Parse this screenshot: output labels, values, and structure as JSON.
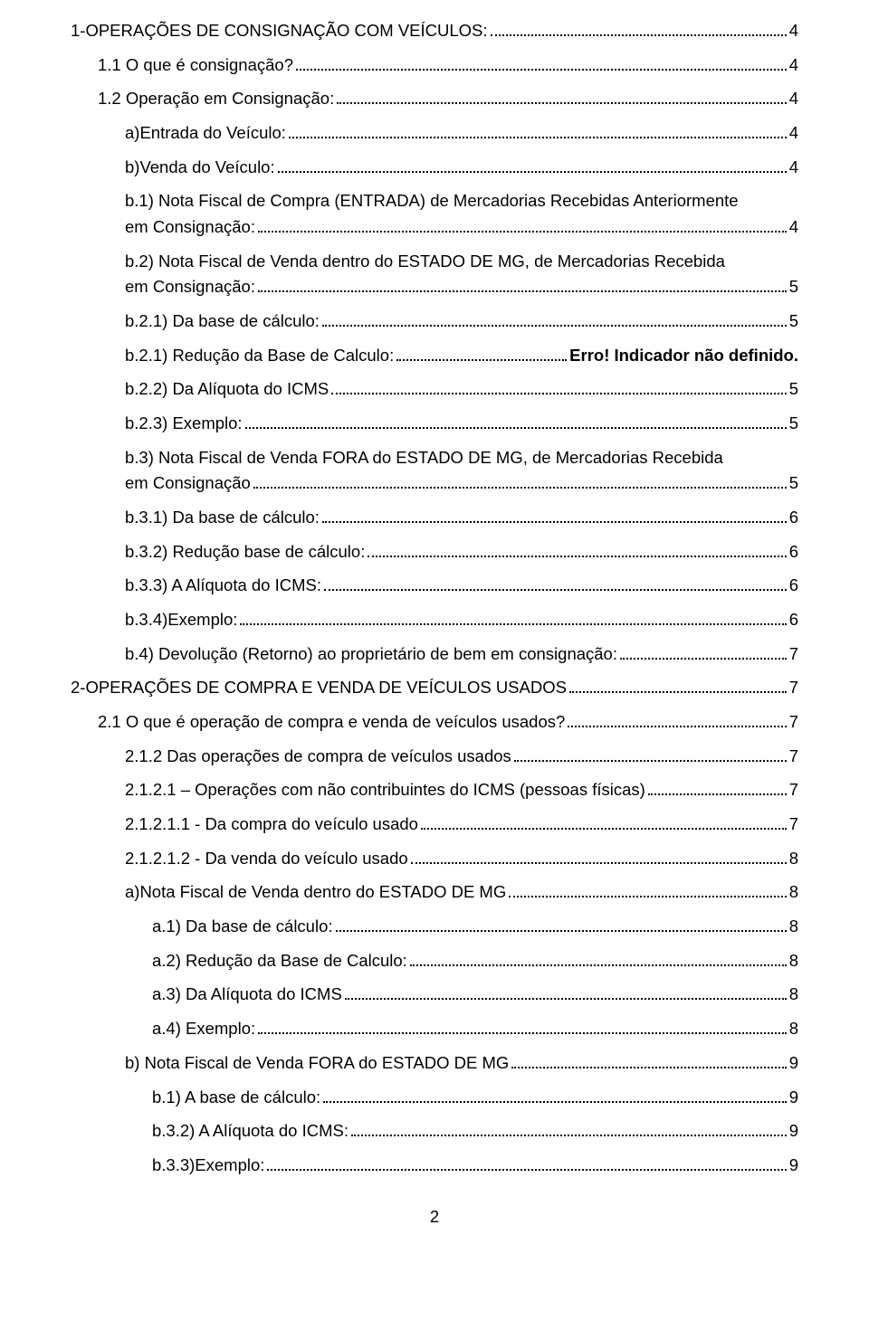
{
  "toc": [
    {
      "title": "1-OPERAÇÕES DE CONSIGNAÇÃO COM VEÍCULOS:",
      "page": "4",
      "level": 0,
      "bold": false
    },
    {
      "title": "1.1   O que é consignação?",
      "page": "4",
      "level": 1,
      "bold": false
    },
    {
      "title": "1.2   Operação em Consignação:",
      "page": "4",
      "level": 1,
      "bold": false
    },
    {
      "title": "a)Entrada do Veículo:",
      "page": "4",
      "level": 2,
      "bold": false
    },
    {
      "title": "b)Venda do Veículo:",
      "page": "4",
      "level": 2,
      "bold": false
    },
    {
      "title": "b.1) Nota Fiscal de Compra (ENTRADA) de Mercadorias Recebidas Anteriormente em Consignação:",
      "page": "4",
      "level": 2,
      "bold": false,
      "multiline": true
    },
    {
      "title": "b.2) Nota Fiscal de Venda dentro do ESTADO DE MG, de Mercadorias Recebida em Consignação:",
      "page": "5",
      "level": 2,
      "bold": false,
      "multiline": true
    },
    {
      "title": "b.2.1) Da base de cálculo:",
      "page": "5",
      "level": 2,
      "bold": false
    },
    {
      "title": "b.2.1) Redução da Base de Calculo:",
      "page": "Erro! Indicador não definido.",
      "level": 2,
      "bold": true,
      "boldPage": true
    },
    {
      "title": "b.2.2) Da Alíquota do ICMS",
      "page": "5",
      "level": 2,
      "bold": false
    },
    {
      "title": "b.2.3) Exemplo:",
      "page": "5",
      "level": 2,
      "bold": false
    },
    {
      "title": "b.3) Nota Fiscal de Venda FORA do ESTADO DE MG, de Mercadorias Recebida em Consignação",
      "page": "5",
      "level": 2,
      "bold": false,
      "multiline": true
    },
    {
      "title": "b.3.1) Da base de cálculo:",
      "page": "6",
      "level": 2,
      "bold": false
    },
    {
      "title": "b.3.2) Redução  base de cálculo:",
      "page": "6",
      "level": 2,
      "bold": false
    },
    {
      "title": "b.3.3) A Alíquota do ICMS:",
      "page": "6",
      "level": 2,
      "bold": false
    },
    {
      "title": "b.3.4)Exemplo:",
      "page": "6",
      "level": 2,
      "bold": false
    },
    {
      "title": "b.4) Devolução (Retorno) ao proprietário de bem em consignação:",
      "page": "7",
      "level": 2,
      "bold": false
    },
    {
      "title": "2-OPERAÇÕES DE COMPRA E VENDA DE VEÍCULOS USADOS",
      "page": "7",
      "level": 0,
      "bold": false
    },
    {
      "title": "2.1 O que é operação de compra e venda de veículos usados?",
      "page": "7",
      "level": 1,
      "bold": false
    },
    {
      "title": "2.1.2 Das operações de compra de veículos usados",
      "page": "7",
      "level": 2,
      "bold": false
    },
    {
      "title": "2.1.2.1 – Operações com não contribuintes do ICMS (pessoas físicas)",
      "page": "7",
      "level": 2,
      "bold": false
    },
    {
      "title": "2.1.2.1.1 - Da compra do veículo usado",
      "page": "7",
      "level": 2,
      "bold": false
    },
    {
      "title": "2.1.2.1.2 - Da venda do veículo usado",
      "page": "8",
      "level": 2,
      "bold": false
    },
    {
      "title": "a)Nota Fiscal de Venda dentro do ESTADO DE MG",
      "page": "8",
      "level": 2,
      "bold": false
    },
    {
      "title": "a.1) Da base de cálculo:",
      "page": "8",
      "level": 3,
      "bold": false
    },
    {
      "title": "a.2) Redução da Base de Calculo:",
      "page": "8",
      "level": 3,
      "bold": false
    },
    {
      "title": "a.3) Da Alíquota do ICMS",
      "page": "8",
      "level": 3,
      "bold": false
    },
    {
      "title": "a.4) Exemplo:",
      "page": "8",
      "level": 3,
      "bold": false
    },
    {
      "title": "b) Nota Fiscal de Venda FORA do ESTADO DE MG",
      "page": "9",
      "level": 2,
      "bold": false
    },
    {
      "title": "b.1) A base de cálculo:",
      "page": "9",
      "level": 3,
      "bold": false
    },
    {
      "title": "b.3.2) A Alíquota do ICMS:",
      "page": "9",
      "level": 3,
      "bold": false
    },
    {
      "title": "b.3.3)Exemplo:",
      "page": "9",
      "level": 3,
      "bold": false
    }
  ],
  "pageNumber": "2"
}
